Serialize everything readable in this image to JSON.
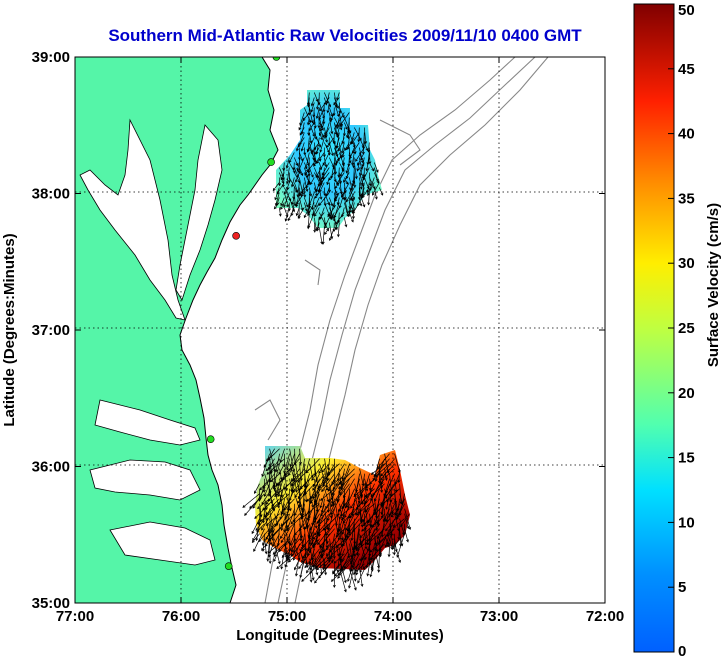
{
  "title": "Southern Mid-Atlantic Raw Velocities 2009/11/10 0400 GMT",
  "colors": {
    "title": "#0000cc",
    "land": "#55f5a8",
    "coast": "#000000",
    "bathymetry": "#888888",
    "grid": "#000000",
    "station": "#22dd22",
    "station_alert": "#ee2222"
  },
  "x_axis": {
    "label": "Longitude (Degrees:Minutes)",
    "ticks": [
      "77:00",
      "76:00",
      "75:00",
      "74:00",
      "73:00",
      "72:00"
    ],
    "range": [
      -77,
      -72
    ]
  },
  "y_axis": {
    "label": "Latitude (Degrees:Minutes)",
    "ticks": [
      "39:00",
      "38:00",
      "37:00",
      "36:00",
      "35:00"
    ],
    "range": [
      35,
      39
    ]
  },
  "colorbar": {
    "label": "Surface Velocity (cm/s)",
    "ticks": [
      "50",
      "45",
      "40",
      "35",
      "30",
      "25",
      "20",
      "15",
      "10",
      "5",
      "0"
    ],
    "range": [
      0,
      50
    ],
    "colormap": "jet"
  },
  "stations": [
    {
      "lon": -75.1,
      "lat": 39.0,
      "status": "ok"
    },
    {
      "lon": -75.15,
      "lat": 38.23,
      "status": "ok"
    },
    {
      "lon": -75.48,
      "lat": 37.69,
      "status": "alert"
    },
    {
      "lon": -75.72,
      "lat": 36.2,
      "status": "ok"
    },
    {
      "lon": -75.55,
      "lat": 35.27,
      "status": "ok"
    }
  ],
  "velocity_fields": [
    {
      "region": "north",
      "lon_range": [
        -75.12,
        -74.02
      ],
      "lat_range": [
        37.75,
        38.85
      ],
      "speed_range": [
        6,
        16
      ]
    },
    {
      "region": "south",
      "lon_range": [
        -75.4,
        -73.75
      ],
      "lat_range": [
        35.25,
        36.35
      ],
      "speed_range": [
        10,
        50
      ]
    }
  ]
}
